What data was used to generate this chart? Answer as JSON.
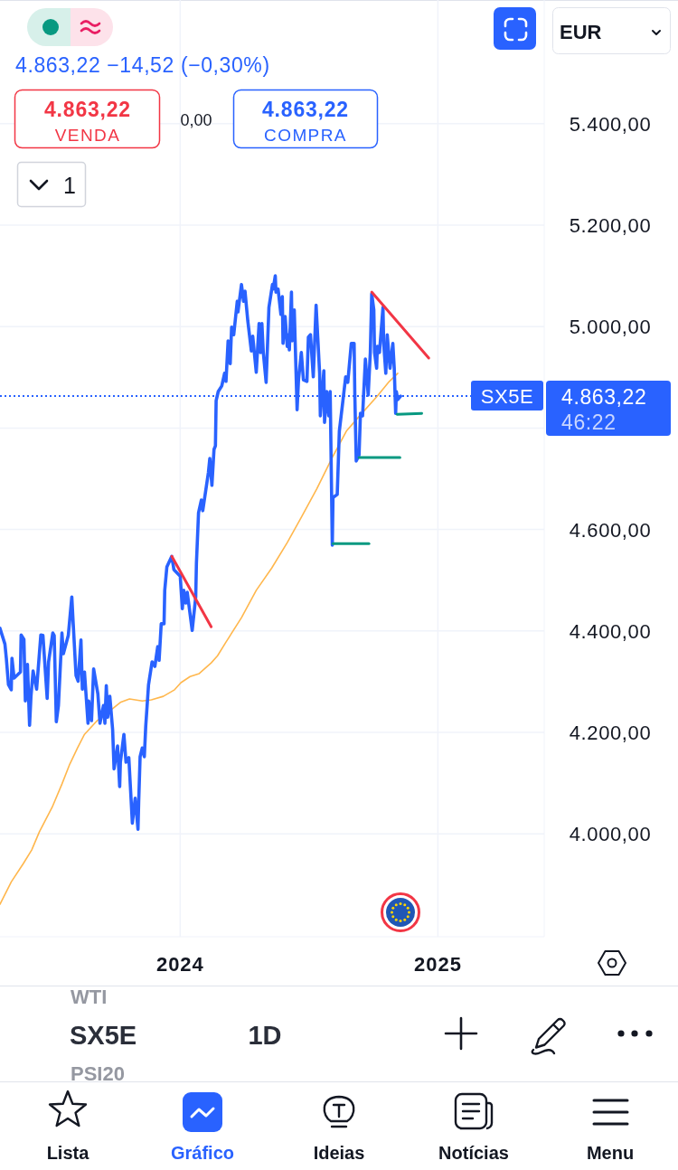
{
  "chart_data": {
    "type": "line",
    "grid": true,
    "xlim": [
      "2023-04-20",
      "2025-06-01"
    ],
    "ylim": [
      3797,
      5644
    ],
    "xticks": [
      {
        "value": "2024-01-01",
        "label": "2024"
      },
      {
        "value": "2025-01-01",
        "label": "2025"
      }
    ],
    "yticks": [
      {
        "value": 4000,
        "label": "4.000,00"
      },
      {
        "value": 4200,
        "label": "4.200,00"
      },
      {
        "value": 4400,
        "label": "4.400,00"
      },
      {
        "value": 4600,
        "label": "4.600,00"
      },
      {
        "value": 4800,
        "label": null
      },
      {
        "value": 5000,
        "label": "5.000,00"
      },
      {
        "value": 5200,
        "label": "5.200,00"
      },
      {
        "value": 5400,
        "label": "5.400,00"
      }
    ],
    "series": [
      {
        "type": "line",
        "color": "#ffb74d",
        "x": [
          "2023-04-20",
          "2023-05-06",
          "2023-05-23",
          "2023-06-04",
          "2023-06-15",
          "2023-07-03",
          "2023-07-17",
          "2023-07-28",
          "2023-08-08",
          "2023-08-18",
          "2023-09-05",
          "2023-09-22",
          "2023-10-08",
          "2023-10-21",
          "2023-11-08",
          "2023-11-21",
          "2023-12-08",
          "2023-12-24",
          "2024-01-02",
          "2024-01-15",
          "2024-01-28",
          "2024-02-14",
          "2024-02-23",
          "2024-03-06",
          "2024-03-28",
          "2024-04-18",
          "2024-05-10",
          "2024-06-01",
          "2024-06-21",
          "2024-07-13",
          "2024-08-04",
          "2024-08-24",
          "2024-09-15",
          "2024-10-07",
          "2024-10-24",
          "2024-11-05"
        ],
        "values": [
          3861,
          3905,
          3941,
          3968,
          4004,
          4052,
          4098,
          4137,
          4169,
          4196,
          4223,
          4241,
          4259,
          4266,
          4262,
          4264,
          4271,
          4284,
          4298,
          4310,
          4316,
          4337,
          4351,
          4378,
          4426,
          4480,
          4524,
          4574,
          4624,
          4680,
          4742,
          4794,
          4829,
          4863,
          4892,
          4908
        ]
      },
      {
        "type": "line",
        "color": "#2962ff",
        "x": [
          "2023-04-20",
          "2023-04-27",
          "2023-04-29",
          "2023-05-02",
          "2023-05-06",
          "2023-05-07",
          "2023-05-10",
          "2023-05-19",
          "2023-05-20",
          "2023-05-24",
          "2023-05-26",
          "2023-05-29",
          "2023-06-01",
          "2023-06-03",
          "2023-06-06",
          "2023-06-11",
          "2023-06-17",
          "2023-06-20",
          "2023-06-26",
          "2023-06-28",
          "2023-07-04",
          "2023-07-06",
          "2023-07-09",
          "2023-07-12",
          "2023-07-17",
          "2023-07-19",
          "2023-07-26",
          "2023-07-31",
          "2023-08-02",
          "2023-08-06",
          "2023-08-09",
          "2023-08-13",
          "2023-08-15",
          "2023-08-18",
          "2023-08-23",
          "2023-08-24",
          "2023-08-28",
          "2023-08-31",
          "2023-09-06",
          "2023-09-09",
          "2023-09-14",
          "2023-09-16",
          "2023-09-18",
          "2023-09-20",
          "2023-09-23",
          "2023-09-27",
          "2023-09-29",
          "2023-10-04",
          "2023-10-07",
          "2023-10-08",
          "2023-10-13",
          "2023-10-16",
          "2023-10-20",
          "2023-10-25",
          "2023-10-29",
          "2023-11-02",
          "2023-11-03",
          "2023-11-05",
          "2023-11-08",
          "2023-11-11",
          "2023-11-13",
          "2023-11-17",
          "2023-11-22",
          "2023-11-26",
          "2023-11-30",
          "2023-12-02",
          "2023-12-05",
          "2023-12-09",
          "2023-12-10",
          "2023-12-13",
          "2023-12-20",
          "2023-12-23",
          "2024-01-01",
          "2024-01-04",
          "2024-01-06",
          "2024-01-09",
          "2024-01-11",
          "2024-01-18",
          "2024-01-23",
          "2024-01-24",
          "2024-01-27",
          "2024-01-31",
          "2024-02-02",
          "2024-02-10",
          "2024-02-12",
          "2024-02-15",
          "2024-02-18",
          "2024-02-20",
          "2024-02-21",
          "2024-02-24",
          "2024-02-29",
          "2024-03-04",
          "2024-03-06",
          "2024-03-09",
          "2024-03-12",
          "2024-03-14",
          "2024-03-17",
          "2024-03-22",
          "2024-03-23",
          "2024-03-28",
          "2024-03-31",
          "2024-04-02",
          "2024-04-06",
          "2024-04-11",
          "2024-04-13",
          "2024-04-18",
          "2024-04-22",
          "2024-04-24",
          "2024-04-26",
          "2024-04-28",
          "2024-05-02",
          "2024-05-06",
          "2024-05-11",
          "2024-05-12",
          "2024-05-15",
          "2024-05-16",
          "2024-05-19",
          "2024-05-23",
          "2024-05-25",
          "2024-05-26",
          "2024-05-29",
          "2024-06-01",
          "2024-06-02",
          "2024-06-04",
          "2024-06-07",
          "2024-06-08",
          "2024-06-11",
          "2024-06-15",
          "2024-06-17",
          "2024-06-21",
          "2024-06-24",
          "2024-06-29",
          "2024-07-01",
          "2024-07-04",
          "2024-07-08",
          "2024-07-12",
          "2024-07-17",
          "2024-07-18",
          "2024-07-21",
          "2024-07-23",
          "2024-07-24",
          "2024-07-27",
          "2024-07-30",
          "2024-08-01",
          "2024-08-04",
          "2024-08-05",
          "2024-08-11",
          "2024-08-14",
          "2024-08-20",
          "2024-08-23",
          "2024-08-26",
          "2024-08-31",
          "2024-09-04",
          "2024-09-05",
          "2024-09-07",
          "2024-09-11",
          "2024-09-13",
          "2024-09-16",
          "2024-09-20",
          "2024-09-24",
          "2024-09-27",
          "2024-09-29",
          "2024-10-02",
          "2024-10-03",
          "2024-10-06",
          "2024-10-07",
          "2024-10-10",
          "2024-10-15",
          "2024-10-16",
          "2024-10-19",
          "2024-10-21",
          "2024-10-25",
          "2024-10-29",
          "2024-10-31",
          "2024-11-02",
          "2024-11-03",
          "2024-11-05",
          "2024-11-09"
        ],
        "values": [
          4405,
          4374,
          4346,
          4294,
          4284,
          4346,
          4307,
          4319,
          4392,
          4383,
          4262,
          4334,
          4214,
          4271,
          4321,
          4285,
          4392,
          4391,
          4267,
          4339,
          4396,
          4391,
          4221,
          4253,
          4396,
          4355,
          4391,
          4467,
          4414,
          4312,
          4301,
          4382,
          4285,
          4319,
          4218,
          4262,
          4223,
          4325,
          4276,
          4218,
          4253,
          4218,
          4292,
          4230,
          4271,
          4205,
          4128,
          4173,
          4093,
          4141,
          4196,
          4141,
          4150,
          4021,
          4070,
          4009,
          4062,
          4152,
          4169,
          4152,
          4212,
          4294,
          4339,
          4330,
          4369,
          4342,
          4414,
          4414,
          4480,
          4526,
          4547,
          4521,
          4508,
          4444,
          4480,
          4455,
          4476,
          4401,
          4467,
          4533,
          4633,
          4658,
          4637,
          4712,
          4740,
          4687,
          4758,
          4765,
          4854,
          4872,
          4883,
          4908,
          4892,
          4972,
          4927,
          4999,
          4984,
          5050,
          5029,
          5083,
          5050,
          5070,
          5011,
          4952,
          4981,
          4910,
          5006,
          4949,
          5006,
          4949,
          4890,
          5038,
          5083,
          5074,
          5100,
          5068,
          5074,
          5024,
          5059,
          4967,
          5020,
          4961,
          4984,
          4954,
          5068,
          4972,
          5033,
          4836,
          4895,
          4949,
          4895,
          4892,
          4979,
          4984,
          4901,
          5042,
          4908,
          4824,
          4877,
          4913,
          4811,
          4872,
          4824,
          4872,
          4569,
          4663,
          4669,
          4794,
          4865,
          4901,
          4890,
          4967,
          4967,
          4865,
          4735,
          4747,
          4829,
          4824,
          4936,
          4865,
          4949,
          5065,
          5033,
          4949,
          4918,
          4961,
          4949,
          5038,
          4967,
          4908,
          4984,
          4918,
          4967,
          4918,
          4829,
          4872,
          4856,
          4863
        ]
      },
      {
        "type": "line",
        "color": "#f23645",
        "x": [
          "2023-12-20",
          "2024-02-14"
        ],
        "values": [
          4547,
          4408
        ]
      },
      {
        "type": "line",
        "color": "#f23645",
        "x": [
          "2024-09-29",
          "2024-12-19"
        ],
        "values": [
          5068,
          4938
        ]
      },
      {
        "type": "line",
        "color": "#089981",
        "x": [
          "2024-08-05",
          "2024-09-25"
        ],
        "values": [
          4572,
          4572
        ]
      },
      {
        "type": "line",
        "color": "#089981",
        "x": [
          "2024-09-11",
          "2024-11-08"
        ],
        "values": [
          4742,
          4742
        ]
      },
      {
        "type": "line",
        "color": "#089981",
        "x": [
          "2024-11-04",
          "2024-12-09"
        ],
        "values": [
          4827,
          4829
        ]
      }
    ],
    "ref_lines": [
      {
        "axis": "y",
        "value": 4863.22,
        "label": "SX5E",
        "color": "#2962ff",
        "line_style": "dotted"
      }
    ],
    "annotations": [
      "4.863,22 −14,52 (−0,30%)",
      "4.863,22",
      "VENDA",
      "0,00",
      "4.863,22",
      "COMPRA",
      "1",
      "EUR",
      "4.863,22",
      "46:22",
      "WTI",
      "SX5E",
      "1D",
      "PSI20",
      "Lista",
      "Gráfico",
      "Ideias",
      "Notícias",
      "Menu"
    ]
  }
}
